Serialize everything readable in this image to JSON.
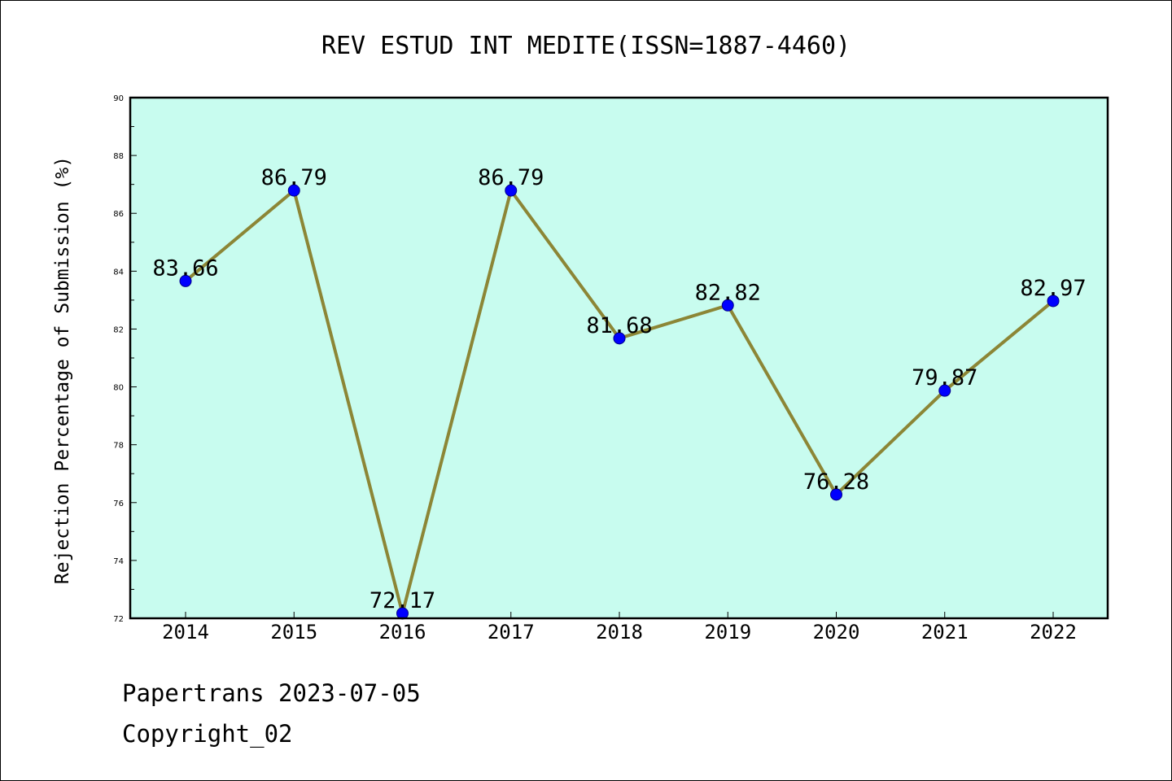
{
  "chart_data": {
    "type": "line",
    "title": "REV ESTUD INT MEDITE(ISSN=1887-4460)",
    "xlabel": "",
    "ylabel": "Rejection Percentage of Submission (%)",
    "categories": [
      "2014",
      "2015",
      "2016",
      "2017",
      "2018",
      "2019",
      "2020",
      "2021",
      "2022"
    ],
    "series": [
      {
        "values": [
          83.66,
          86.79,
          72.17,
          86.79,
          81.68,
          82.82,
          76.28,
          79.87,
          82.97
        ],
        "labels": [
          "83.66",
          "86.79",
          "72.17",
          "86.79",
          "81.68",
          "82.82",
          "76.28",
          "79.87",
          "82.97"
        ]
      }
    ],
    "ylim": [
      72,
      90
    ],
    "yticks": [
      "72",
      "74",
      "76",
      "78",
      "80",
      "82",
      "84",
      "86",
      "88",
      "90"
    ],
    "grid": false,
    "colors": {
      "plot_background": "#c8fcef",
      "line": "#8c8636",
      "marker": "#0000ff"
    }
  },
  "footer": {
    "line1": "Papertrans 2023-07-05",
    "line2": "Copyright_02"
  }
}
